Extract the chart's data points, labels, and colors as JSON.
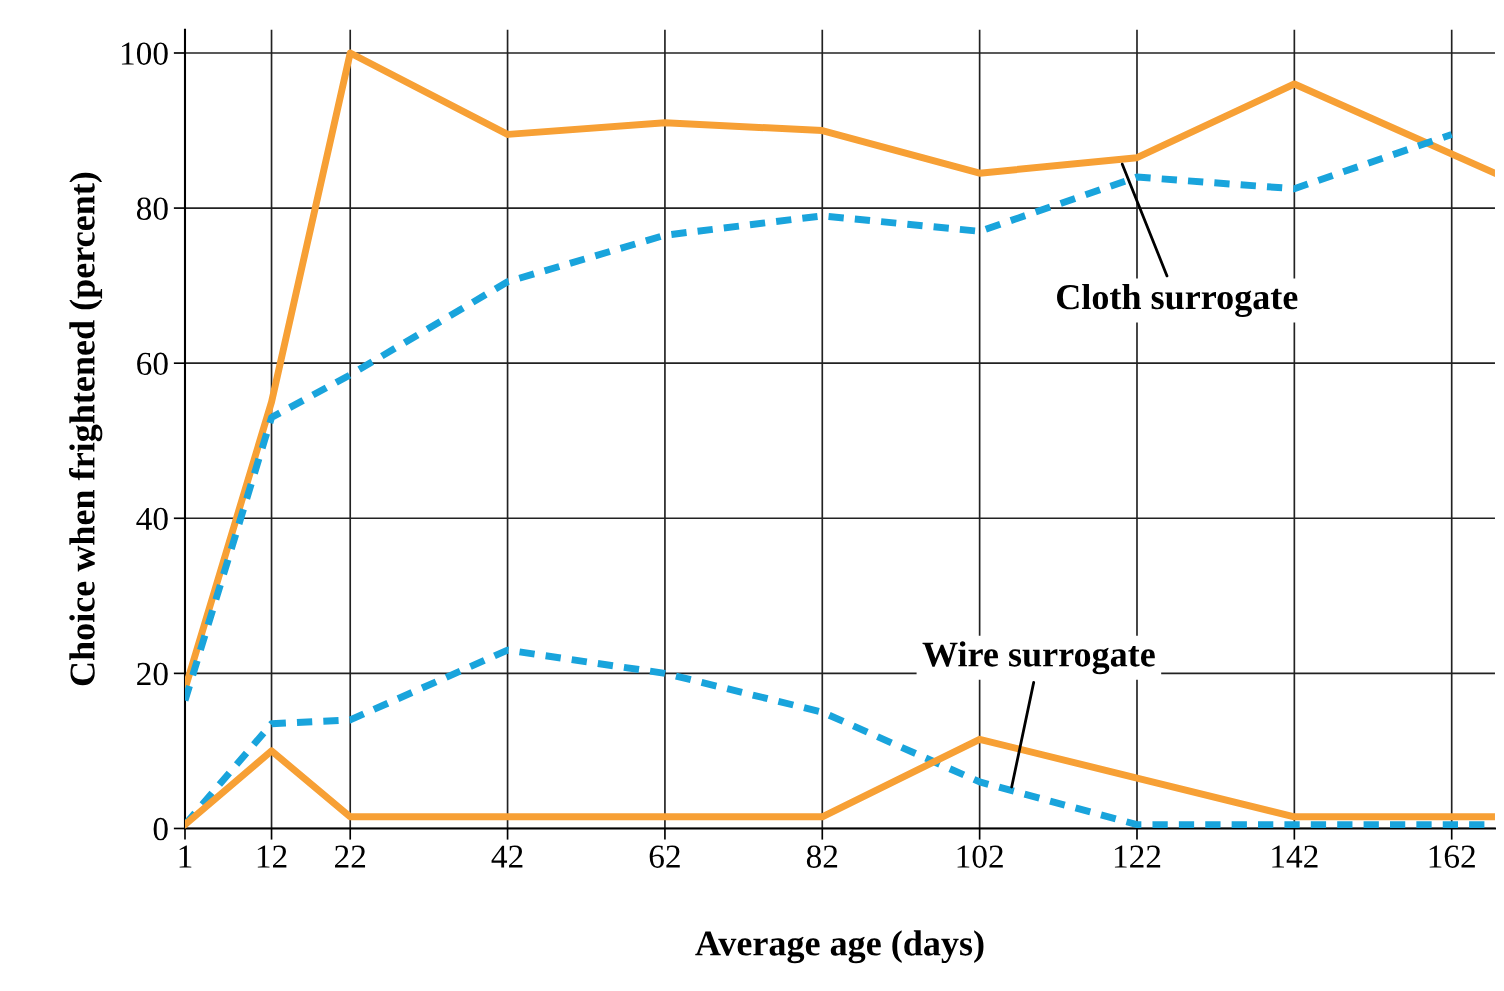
{
  "chart_data": {
    "type": "line",
    "xlabel": "Average age (days)",
    "ylabel": "Choice when frightened (percent)",
    "xlim": [
      1,
      167.5
    ],
    "xticks": [
      1,
      12,
      22,
      42,
      62,
      82,
      102,
      122,
      142,
      162
    ],
    "ylim": [
      0,
      103
    ],
    "yticks": [
      0,
      20,
      40,
      60,
      80,
      100
    ],
    "grid": true,
    "marker": "none",
    "series": [
      {
        "color": "#f7a035",
        "line_style": "solid",
        "x": [
          1,
          12,
          22,
          42,
          62,
          82,
          102,
          122,
          142,
          167.5
        ],
        "values": [
          18,
          55,
          100,
          89.5,
          91,
          90,
          84.5,
          86.5,
          96,
          84.5
        ]
      },
      {
        "color": "#19a4dc",
        "line_style": "dashed",
        "x": [
          1,
          12,
          22,
          42,
          62,
          82,
          102,
          122,
          142,
          162
        ],
        "values": [
          16.5,
          53,
          58.5,
          70.5,
          76.5,
          79,
          77,
          84,
          82.5,
          89.5
        ]
      },
      {
        "color": "#19a4dc",
        "line_style": "dashed",
        "x": [
          1,
          12,
          22,
          42,
          62,
          82,
          102,
          122,
          142,
          167.5
        ],
        "values": [
          0.5,
          13.5,
          14,
          23,
          20,
          15,
          6,
          0.5,
          0.5,
          0.5
        ]
      },
      {
        "color": "#f7a035",
        "line_style": "solid",
        "x": [
          1,
          12,
          22,
          42,
          62,
          82,
          102,
          122,
          142,
          167.5
        ],
        "values": [
          0.5,
          10,
          1.5,
          1.5,
          1.5,
          1.5,
          11.5,
          6.5,
          1.5,
          1.5
        ]
      }
    ],
    "annotations": [
      {
        "text": "Cloth surrogate",
        "x": 120,
        "y": 86
      },
      {
        "text": "Wire surrogate",
        "x": 106,
        "y": 5
      }
    ]
  }
}
